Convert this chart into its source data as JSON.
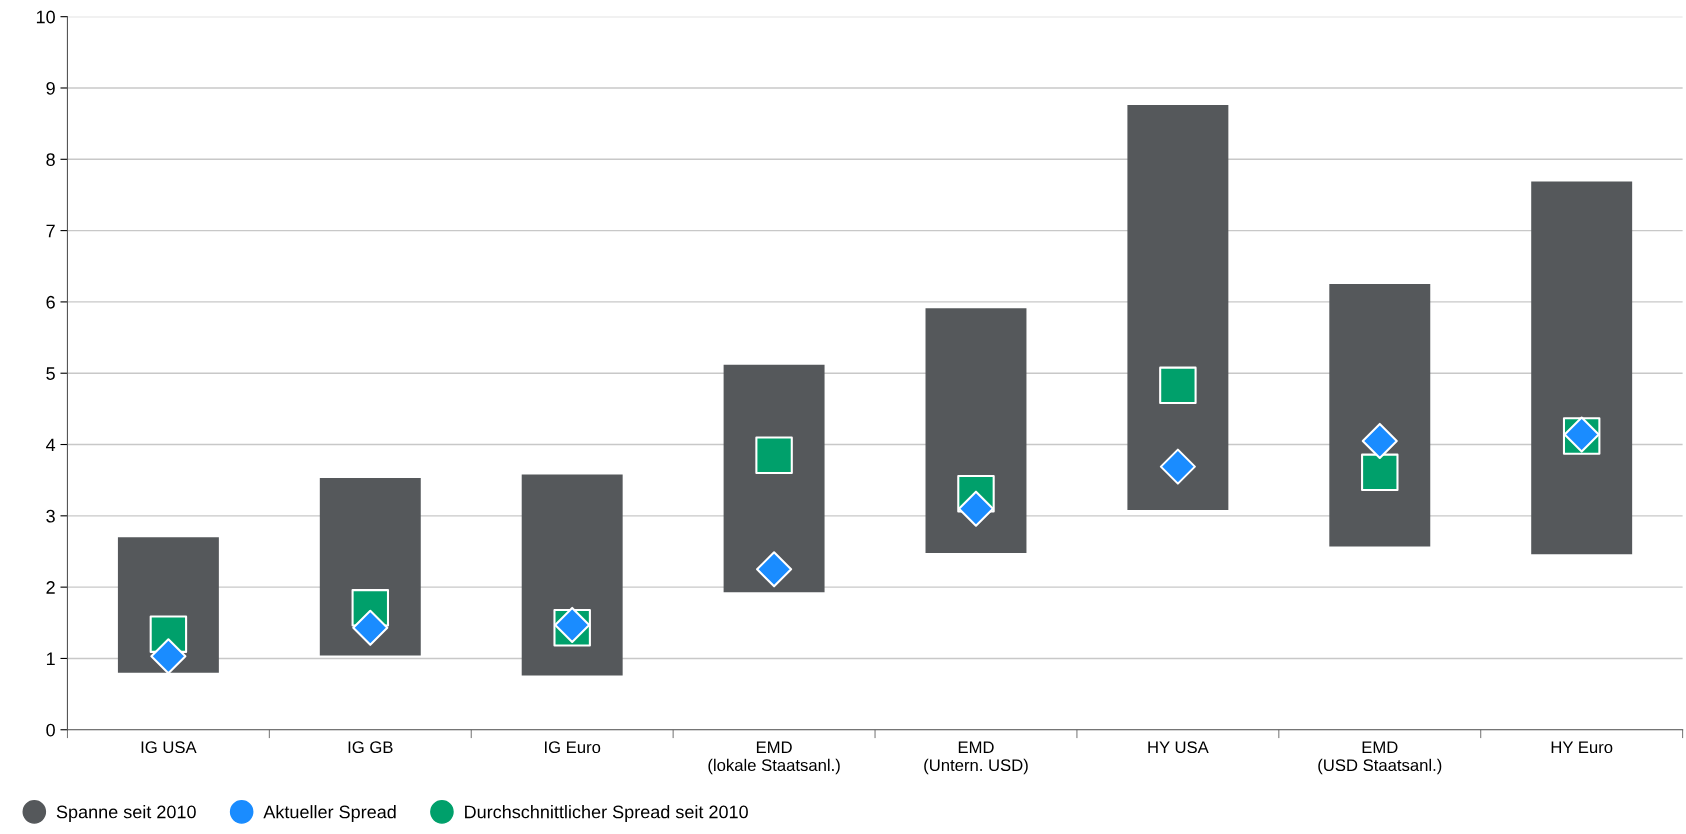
{
  "chart_data": {
    "type": "bar",
    "categories": [
      "IG USA",
      "IG GB",
      "IG Euro",
      "EMD\n(lokale Staatsanl.)",
      "EMD\n(Untern. USD)",
      "HY USA",
      "EMD\n(USD Staatsanl.)",
      "HY Euro"
    ],
    "series": [
      {
        "name": "Spanne seit 2010",
        "type": "bar",
        "color": "#55585b",
        "base": [
          0.8,
          1.04,
          0.76,
          1.93,
          2.48,
          3.08,
          2.57,
          2.46
        ],
        "values": [
          1.9,
          2.49,
          2.82,
          3.19,
          3.43,
          5.68,
          3.68,
          5.23
        ]
      },
      {
        "name": "Aktueller Spread",
        "type": "scatter",
        "marker": "diamond",
        "color": "#1a8cff",
        "values": [
          1.03,
          1.43,
          1.47,
          2.25,
          3.1,
          3.69,
          4.05,
          4.14
        ]
      },
      {
        "name": "Durchschnittlicher Spread seit 2010",
        "type": "scatter",
        "marker": "square",
        "color": "#00a06b",
        "values": [
          1.34,
          1.71,
          1.43,
          3.85,
          3.31,
          4.83,
          3.61,
          4.12
        ]
      }
    ],
    "ylim": [
      0,
      10
    ],
    "yticks": [
      0,
      1,
      2,
      3,
      4,
      5,
      6,
      7,
      8,
      9,
      10
    ],
    "grid": "y",
    "legend": "bottom left"
  }
}
